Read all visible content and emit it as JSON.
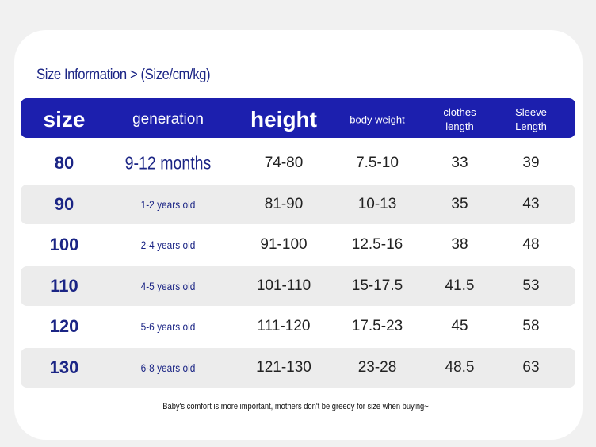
{
  "header": {
    "title": "Size Information > (Size/cm/kg)"
  },
  "table": {
    "columns": [
      "size",
      "generation",
      "height",
      "body weight",
      "clothes length",
      "Sleeve Length"
    ],
    "rows": [
      [
        "80",
        "9-12 months",
        "74-80",
        "7.5-10",
        "33",
        "39"
      ],
      [
        "90",
        "1-2 years old",
        "81-90",
        "10-13",
        "35",
        "43"
      ],
      [
        "100",
        "2-4 years old",
        "91-100",
        "12.5-16",
        "38",
        "48"
      ],
      [
        "110",
        "4-5 years old",
        "101-110",
        "15-17.5",
        "41.5",
        "53"
      ],
      [
        "120",
        "5-6 years old",
        "111-120",
        "17.5-23",
        "45",
        "58"
      ],
      [
        "130",
        "6-8 years old",
        "121-130",
        "23-28",
        "48.5",
        "63"
      ]
    ]
  },
  "footer": {
    "note": "Baby's comfort is more important, mothers don't be greedy for size when buying~"
  }
}
